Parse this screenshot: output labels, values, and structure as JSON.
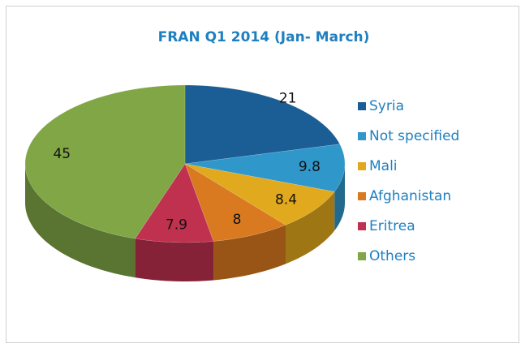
{
  "chart_data": {
    "type": "pie",
    "title": "FRAN Q1 2014 (Jan- March)",
    "categories": [
      "Syria",
      "Not specified",
      "Mali",
      "Afghanistan",
      "Eritrea",
      "Others"
    ],
    "values": [
      21,
      9.8,
      8.4,
      8,
      7.9,
      45
    ],
    "colors": [
      "#1b5e95",
      "#2f97c9",
      "#e1a91d",
      "#d97a20",
      "#c0304f",
      "#80a646"
    ],
    "legend": "right"
  }
}
